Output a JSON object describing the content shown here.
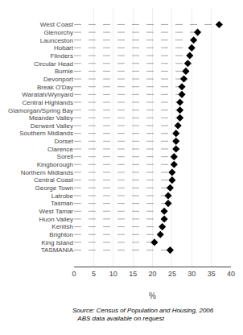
{
  "chart_data": {
    "type": "dot",
    "orientation": "horizontal",
    "categories": [
      "West Coast",
      "Glenorchy",
      "Launceston",
      "Hobart",
      "Flinders",
      "Circular Head",
      "Burnie",
      "Devonport",
      "Break O'Day",
      "Waratah/Wynyard",
      "Central Highlands",
      "Glamorgan/Spring Bay",
      "Meander Valley",
      "Derwent Valley",
      "Southern Midlands",
      "Dorset",
      "Clarence",
      "Sorell",
      "Kingborough",
      "Northern Midlands",
      "Central Coast",
      "George Town",
      "Latrobe",
      "Tasman",
      "West Tamar",
      "Huon Valley",
      "Kentish",
      "Brighton",
      "King Island",
      "TASMANIA"
    ],
    "values": [
      37.0,
      31.5,
      30.5,
      30.0,
      29.5,
      29.0,
      28.5,
      28.0,
      27.5,
      27.5,
      27.0,
      27.0,
      27.0,
      26.5,
      26.0,
      26.0,
      26.0,
      25.5,
      25.5,
      25.0,
      25.0,
      24.5,
      24.0,
      24.0,
      23.0,
      23.0,
      22.5,
      22.0,
      20.5,
      24.5
    ],
    "color": "#000000",
    "marker": "diamond",
    "line_style": "dashed",
    "xlabel": "%",
    "xlim": [
      0,
      40
    ],
    "xticks": [
      0,
      5,
      10,
      15,
      20,
      25,
      30,
      35,
      40
    ],
    "grid": true,
    "annotations": [
      "Source: Census of Population and Housing, 2006",
      "   ABS data available on request"
    ]
  }
}
